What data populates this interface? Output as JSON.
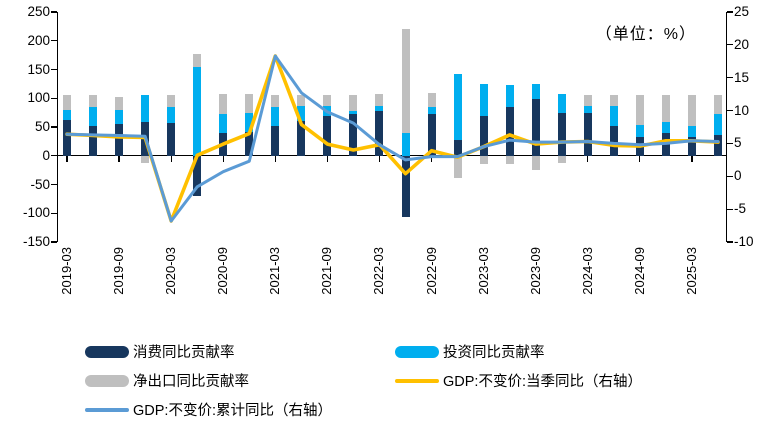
{
  "title": "（单位：%）",
  "chart_data": {
    "type": "combo",
    "bar_mode": "stacked",
    "unit": "%",
    "grid": "off",
    "legend_position": "bottom-left",
    "categories": [
      "2019-03",
      "2019-06",
      "2019-09",
      "2019-12",
      "2020-03",
      "2020-06",
      "2020-09",
      "2020-12",
      "2021-03",
      "2021-06",
      "2021-09",
      "2021-12",
      "2022-03",
      "2022-06",
      "2022-09",
      "2022-12",
      "2023-03",
      "2023-06",
      "2023-09",
      "2023-12",
      "2024-03",
      "2024-06",
      "2024-09",
      "2024-12",
      "2025-03",
      "2025-06"
    ],
    "x_tick_labels": [
      "2019-03",
      "2019-09",
      "2020-03",
      "2020-09",
      "2021-03",
      "2021-09",
      "2022-03",
      "2022-09",
      "2023-03",
      "2023-09",
      "2024-03",
      "2024-09",
      "2025-03"
    ],
    "left_axis": {
      "min": -150,
      "max": 250,
      "step": 50,
      "tick_labels": [
        "250",
        "200",
        "150",
        "100",
        "50",
        "0",
        "-50",
        "-100",
        "-150"
      ]
    },
    "right_axis": {
      "min": -10,
      "max": 25,
      "step": 5,
      "tick_labels": [
        "25",
        "20",
        "15",
        "10",
        "5",
        "0",
        "-5",
        "-10"
      ]
    },
    "series": [
      {
        "name": "消费同比贡献率",
        "type": "bar",
        "axis": "left",
        "color": "#17375E",
        "values": [
          62,
          52,
          56,
          59,
          57,
          -70,
          39,
          42,
          51,
          60,
          69,
          72,
          78,
          -107,
          73,
          27,
          69,
          84,
          99,
          75,
          75,
          51,
          33,
          39,
          32,
          36
        ]
      },
      {
        "name": "投资同比贡献率",
        "type": "bar",
        "axis": "left",
        "color": "#00AEEF",
        "values": [
          18,
          32,
          23,
          46,
          27,
          155,
          33,
          33,
          33,
          27,
          17,
          6,
          9,
          40,
          11,
          116,
          55,
          39,
          25,
          33,
          12,
          36,
          21,
          19,
          20,
          36
        ]
      },
      {
        "name": "净出口同比贡献率",
        "type": "bar",
        "axis": "left",
        "color": "#BFBFBF",
        "values": [
          25,
          21,
          23,
          -12,
          21,
          22,
          35,
          32,
          21,
          18,
          19,
          28,
          20,
          180,
          25,
          -38,
          -14,
          -14,
          -25,
          -13,
          19,
          19,
          51,
          47,
          54,
          34
        ]
      },
      {
        "name": "GDP:不变价:当季同比（右轴）",
        "type": "line",
        "axis": "right",
        "color": "#FFC000",
        "values": [
          6.4,
          6.2,
          6.0,
          5.9,
          -6.8,
          3.2,
          4.9,
          6.5,
          18.3,
          7.9,
          4.9,
          4.0,
          4.8,
          0.4,
          3.9,
          2.9,
          4.5,
          6.3,
          4.9,
          5.2,
          5.3,
          4.7,
          4.6,
          5.4,
          5.4,
          5.2
        ]
      },
      {
        "name": "GDP:不变价:累计同比（右轴）",
        "type": "line",
        "axis": "right",
        "color": "#5B9BD5",
        "values": [
          6.4,
          6.3,
          6.2,
          6.1,
          -6.8,
          -1.6,
          0.7,
          2.3,
          18.3,
          12.7,
          9.8,
          8.1,
          4.8,
          2.5,
          3.0,
          3.0,
          4.5,
          5.5,
          5.2,
          5.2,
          5.3,
          5.0,
          4.8,
          5.0,
          5.4,
          5.3
        ]
      }
    ]
  }
}
